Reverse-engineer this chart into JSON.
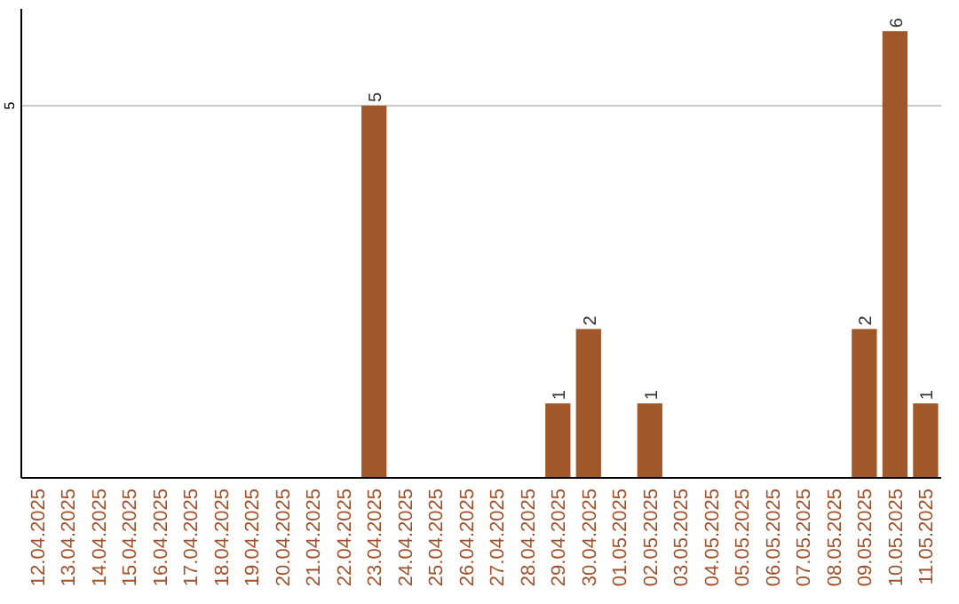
{
  "chart_data": {
    "type": "bar",
    "categories": [
      "12.04.2025",
      "13.04.2025",
      "14.04.2025",
      "15.04.2025",
      "16.04.2025",
      "17.04.2025",
      "18.04.2025",
      "19.04.2025",
      "20.04.2025",
      "21.04.2025",
      "22.04.2025",
      "23.04.2025",
      "24.04.2025",
      "25.04.2025",
      "26.04.2025",
      "27.04.2025",
      "28.04.2025",
      "29.04.2025",
      "30.04.2025",
      "01.05.2025",
      "02.05.2025",
      "03.05.2025",
      "04.05.2025",
      "05.05.2025",
      "06.05.2025",
      "07.05.2025",
      "08.05.2025",
      "09.05.2025",
      "10.05.2025",
      "11.05.2025"
    ],
    "values": [
      0,
      0,
      0,
      0,
      0,
      0,
      0,
      0,
      0,
      0,
      0,
      5,
      0,
      0,
      0,
      0,
      0,
      1,
      2,
      0,
      1,
      0,
      0,
      0,
      0,
      0,
      0,
      2,
      6,
      1
    ],
    "value_labels": [
      null,
      null,
      null,
      null,
      null,
      null,
      null,
      null,
      null,
      null,
      null,
      "5",
      null,
      null,
      null,
      null,
      null,
      "1",
      "2",
      null,
      "1",
      null,
      null,
      null,
      null,
      null,
      null,
      "2",
      "6",
      "1"
    ],
    "color": "#a0582a",
    "ylim": [
      0,
      6.3
    ],
    "yticks": [
      5
    ],
    "grid": "y"
  }
}
